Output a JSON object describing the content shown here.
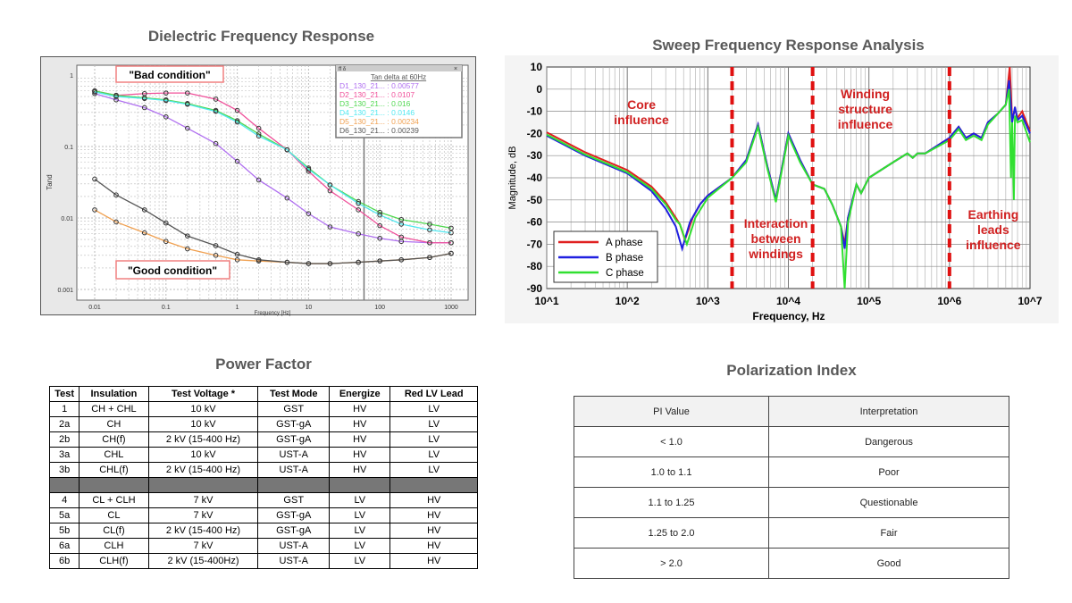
{
  "titles": {
    "dfr": "Dielectric Frequency Response",
    "sfra": "Sweep Frequency Response Analysis",
    "pf": "Power Factor",
    "pi": "Polarization Index"
  },
  "chart_data": [
    {
      "type": "line",
      "title": "Dielectric Frequency Response",
      "xlabel": "Frequency [Hz]",
      "ylabel": "Tand",
      "xscale": "log",
      "yscale": "log",
      "xlim": [
        0.01,
        1000
      ],
      "ylim": [
        0.001,
        1
      ],
      "x_ticks": [
        "0.01",
        "0.1",
        "1",
        "10",
        "100",
        "1000"
      ],
      "y_ticks": [
        "1",
        "0.1",
        "0.01",
        "0.001"
      ],
      "grid": true,
      "annotations": {
        "bad": "\"Bad condition\"",
        "good": "\"Good condition\""
      },
      "marker_line_x": 60,
      "legend": {
        "title": "Tan delta at 60Hz",
        "placement": "top-right",
        "header": "ff δ"
      },
      "x": [
        0.01,
        0.02,
        0.05,
        0.1,
        0.2,
        0.5,
        1,
        2,
        5,
        10,
        20,
        50,
        100,
        200,
        500,
        1000
      ],
      "series": [
        {
          "name": "D1_130_21...",
          "value_label": "0.00577",
          "color": "#b070f0",
          "values": [
            0.55,
            0.45,
            0.35,
            0.26,
            0.18,
            0.11,
            0.062,
            0.034,
            0.019,
            0.0115,
            0.0075,
            0.006,
            0.0052,
            0.0047,
            0.0045,
            0.0045
          ]
        },
        {
          "name": "D2_130_21...",
          "value_label": "0.0107",
          "color": "#f0509a",
          "values": [
            0.6,
            0.52,
            0.55,
            0.56,
            0.56,
            0.46,
            0.32,
            0.18,
            0.09,
            0.045,
            0.024,
            0.013,
            0.0078,
            0.0054,
            0.0045,
            0.0045
          ]
        },
        {
          "name": "D3_130_21...",
          "value_label": "0.016",
          "color": "#50d850",
          "values": [
            0.6,
            0.52,
            0.48,
            0.45,
            0.4,
            0.32,
            0.23,
            0.15,
            0.09,
            0.05,
            0.029,
            0.017,
            0.012,
            0.0095,
            0.0082,
            0.0072
          ]
        },
        {
          "name": "D4_130_21...",
          "value_label": "0.0146",
          "color": "#50e8f0",
          "values": [
            0.58,
            0.5,
            0.47,
            0.44,
            0.39,
            0.31,
            0.22,
            0.14,
            0.09,
            0.048,
            0.029,
            0.016,
            0.011,
            0.0082,
            0.0068,
            0.0062
          ]
        },
        {
          "name": "D5_130_21...",
          "value_label": "0.00234",
          "color": "#f0a050",
          "values": [
            0.013,
            0.0088,
            0.0062,
            0.0047,
            0.0037,
            0.003,
            0.0026,
            0.0025,
            0.0024,
            0.0023,
            0.0023,
            0.0024,
            0.0025,
            0.0026,
            0.0028,
            0.0032
          ]
        },
        {
          "name": "D6_130_21...",
          "value_label": "0.00239",
          "color": "#555555",
          "values": [
            0.035,
            0.021,
            0.013,
            0.0085,
            0.0056,
            0.0041,
            0.0031,
            0.0026,
            0.0024,
            0.0023,
            0.0023,
            0.0024,
            0.0025,
            0.0026,
            0.0028,
            0.0032
          ]
        }
      ]
    },
    {
      "type": "line",
      "title": "Sweep Frequency Response Analysis",
      "xlabel": "Frequency, Hz",
      "ylabel": "Magnitude, dB",
      "xscale": "log",
      "xlim": [
        10,
        10000000
      ],
      "ylim": [
        -90,
        10
      ],
      "x_ticks": [
        "10^1",
        "10^2",
        "10^3",
        "10^4",
        "10^5",
        "10^6",
        "10^7"
      ],
      "y_ticks": [
        "10",
        "0",
        "-10",
        "-20",
        "-30",
        "-40",
        "-50",
        "-60",
        "-70",
        "-80",
        "-90"
      ],
      "grid": true,
      "legend": {
        "placement": "bottom-left"
      },
      "region_boundaries_hz": [
        2000,
        20000,
        1000000
      ],
      "region_labels": [
        "Core\ninfluence",
        "Interaction\nbetween\nwindings",
        "Winding\nstructure\ninfluence",
        "Earthing\nleads\ninfluence"
      ],
      "series": [
        {
          "name": "A phase",
          "color": "#e02020",
          "x": [
            10,
            30,
            100,
            200,
            300,
            400,
            450,
            520,
            650,
            800,
            1000,
            2000,
            3000,
            4200,
            5500,
            7000,
            10000,
            14000,
            20000,
            28000,
            35000,
            45000,
            50000,
            55000,
            70000,
            80000,
            100000,
            200000,
            300000,
            350000,
            400000,
            500000,
            1000000,
            1300000,
            1600000,
            2000000,
            2500000,
            3000000,
            4000000,
            5000000,
            5600000,
            6000000,
            6500000,
            7000000,
            8000000,
            10000000
          ],
          "values": [
            -19.5,
            -28.5,
            -36.5,
            -44,
            -51,
            -58,
            -61,
            -68,
            -58,
            -52,
            -48,
            -40,
            -32,
            -16,
            -35,
            -50,
            -20,
            -32,
            -43,
            -45,
            -52,
            -62,
            -70,
            -58,
            -43,
            -47,
            -40,
            -33,
            -29,
            -31,
            -29,
            -29,
            -22,
            -17,
            -22,
            -20,
            -22,
            -15,
            -11,
            -7,
            10,
            -14,
            -9,
            -13,
            -10,
            -19
          ]
        },
        {
          "name": "B phase",
          "color": "#2020e0",
          "x": [
            10,
            30,
            100,
            200,
            300,
            400,
            480,
            600,
            800,
            1000,
            2000,
            3000,
            4200,
            5500,
            7000,
            10000,
            14000,
            20000,
            28000,
            35000,
            45000,
            50000,
            55000,
            70000,
            80000,
            100000,
            200000,
            300000,
            350000,
            400000,
            500000,
            1000000,
            1300000,
            1600000,
            2000000,
            2500000,
            3000000,
            4000000,
            5000000,
            5500000,
            6000000,
            6500000,
            7000000,
            8000000,
            10000000
          ],
          "values": [
            -21,
            -30,
            -38,
            -46,
            -54,
            -62,
            -72,
            -60,
            -52,
            -48,
            -40,
            -32,
            -16,
            -35,
            -50,
            -20,
            -32,
            -43,
            -45,
            -52,
            -62,
            -72,
            -58,
            -43,
            -47,
            -40,
            -33,
            -29,
            -31,
            -29,
            -29,
            -22,
            -17,
            -22,
            -20,
            -22,
            -15,
            -11,
            -7,
            4,
            -15,
            -8,
            -14,
            -12,
            -20
          ]
        },
        {
          "name": "C phase",
          "color": "#30e030",
          "x": [
            10,
            30,
            100,
            200,
            300,
            400,
            450,
            550,
            700,
            1000,
            2000,
            3000,
            4200,
            5500,
            7000,
            10000,
            14000,
            20000,
            28000,
            35000,
            45000,
            50000,
            55000,
            70000,
            80000,
            100000,
            200000,
            300000,
            350000,
            400000,
            500000,
            1000000,
            1300000,
            1600000,
            2000000,
            2500000,
            3000000,
            4000000,
            5000000,
            5500000,
            5800000,
            6000000,
            6300000,
            6500000,
            7000000,
            8000000,
            10000000
          ],
          "values": [
            -20.5,
            -29.5,
            -37.5,
            -45,
            -52,
            -59,
            -61,
            -70,
            -58,
            -49,
            -40,
            -33,
            -17,
            -36,
            -51,
            -21,
            -33,
            -43,
            -45,
            -52,
            -62,
            -90,
            -60,
            -43,
            -47,
            -40,
            -33,
            -29,
            -31,
            -29,
            -29,
            -23,
            -18,
            -23,
            -21,
            -23,
            -16,
            -11,
            -7,
            0,
            -40,
            -15,
            -50,
            -12,
            -15,
            -14,
            -24
          ]
        }
      ]
    }
  ],
  "power_factor": {
    "headers": [
      "Test",
      "Insulation",
      "Test Voltage *",
      "Test Mode",
      "Energize",
      "Red LV Lead"
    ],
    "rows": [
      [
        "1",
        "CH + CHL",
        "10 kV",
        "GST",
        "HV",
        "LV"
      ],
      [
        "2a",
        "CH",
        "10 kV",
        "GST-gA",
        "HV",
        "LV"
      ],
      [
        "2b",
        "CH(f)",
        "2 kV (15-400 Hz)",
        "GST-gA",
        "HV",
        "LV"
      ],
      [
        "3a",
        "CHL",
        "10 kV",
        "UST-A",
        "HV",
        "LV"
      ],
      [
        "3b",
        "CHL(f)",
        "2 kV (15-400 Hz)",
        "UST-A",
        "HV",
        "LV"
      ],
      [
        "",
        "",
        "",
        "",
        "",
        ""
      ],
      [
        "4",
        "CL + CLH",
        "7 kV",
        "GST",
        "LV",
        "HV"
      ],
      [
        "5a",
        "CL",
        "7 kV",
        "GST-gA",
        "LV",
        "HV"
      ],
      [
        "5b",
        "CL(f)",
        "2 kV (15-400 Hz)",
        "GST-gA",
        "LV",
        "HV"
      ],
      [
        "6a",
        "CLH",
        "7 kV",
        "UST-A",
        "LV",
        "HV"
      ],
      [
        "6b",
        "CLH(f)",
        "2 kV (15-400Hz)",
        "UST-A",
        "LV",
        "HV"
      ]
    ]
  },
  "polarization_index": {
    "headers": [
      "PI Value",
      "Interpretation"
    ],
    "rows": [
      [
        "< 1.0",
        "Dangerous"
      ],
      [
        "1.0 to 1.1",
        "Poor"
      ],
      [
        "1.1 to 1.25",
        "Questionable"
      ],
      [
        "1.25 to 2.0",
        "Fair"
      ],
      [
        "> 2.0",
        "Good"
      ]
    ]
  }
}
